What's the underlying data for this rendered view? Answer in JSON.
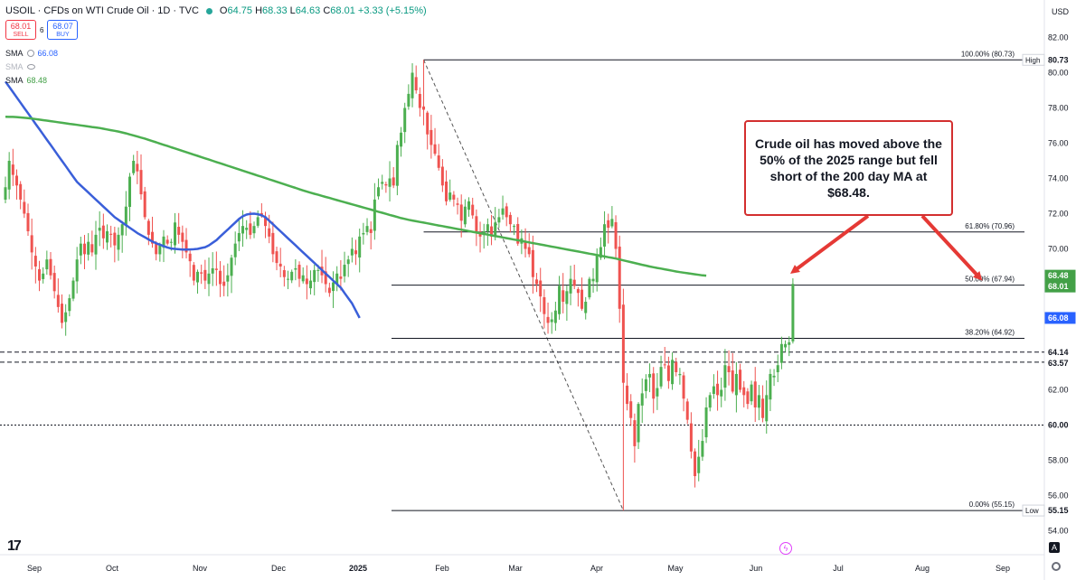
{
  "header": {
    "title": "USOIL · CFDs on WTI Crude Oil · 1D · TVC",
    "ohlc": {
      "o_label": "O",
      "o": "64.75",
      "h_label": "H",
      "h": "68.33",
      "l_label": "L",
      "l": "64.63",
      "c_label": "C",
      "c": "68.01",
      "change": "+3.33 (+5.15%)"
    },
    "sell_price": "68.01",
    "sell_label": "SELL",
    "spread": "6",
    "buy_price": "68.07",
    "buy_label": "BUY"
  },
  "indicators": [
    {
      "name": "SMA",
      "value": "66.08",
      "color": "#2962ff"
    },
    {
      "name": "SMA",
      "value": "",
      "color": "#b2b5be"
    },
    {
      "name": "SMA",
      "value": "68.48",
      "color": "#43a047"
    }
  ],
  "axis_currency": "USD",
  "annotation": {
    "text": "Crude oil has moved above the 50% of the 2025 range but fell short of the 200 day MA at $68.48."
  },
  "colors": {
    "up": "#4caf50",
    "down": "#ef5350",
    "sma_blue": "#3a5fd9",
    "sma_green": "#4caf50",
    "callout": "#d32f2f",
    "arrow": "#e53935"
  },
  "chart_data": {
    "type": "candlestick",
    "symbol": "USOIL",
    "timeframe": "1D",
    "y_range": [
      53,
      83
    ],
    "y_ticks": [
      "82.00",
      "80.00",
      "78.00",
      "76.00",
      "74.00",
      "72.00",
      "70.00",
      "68.00",
      "66.00",
      "64.00",
      "62.00",
      "60.00",
      "58.00",
      "56.00",
      "54.00"
    ],
    "x_ticks": [
      "Sep",
      "Oct",
      "Nov",
      "Dec",
      "2025",
      "Feb",
      "Mar",
      "Apr",
      "May",
      "Jun",
      "Jul",
      "Aug",
      "Sep"
    ],
    "fib_levels": [
      {
        "label": "100.00% (80.73)",
        "value": 80.73
      },
      {
        "label": "61.80% (70.96)",
        "value": 70.96
      },
      {
        "label": "50.00% (67.94)",
        "value": 67.94
      },
      {
        "label": "38.20% (64.92)",
        "value": 64.92
      },
      {
        "label": "0.00% (55.15)",
        "value": 55.15
      }
    ],
    "price_labels": [
      {
        "text": "80.73",
        "value": 80.73,
        "tag": "High",
        "bg": "#ffffff",
        "fg": "#131722"
      },
      {
        "text": "68.48",
        "value": 68.48,
        "bg": "#43a047",
        "fg": "#ffffff"
      },
      {
        "text": "68.01",
        "value": 68.01,
        "bg": "#43a047",
        "fg": "#ffffff"
      },
      {
        "text": "66.08",
        "value": 66.08,
        "bg": "#2962ff",
        "fg": "#ffffff"
      },
      {
        "text": "64.14",
        "value": 64.14,
        "bg": "#ffffff",
        "fg": "#131722"
      },
      {
        "text": "63.57",
        "value": 63.57,
        "bg": "#ffffff",
        "fg": "#131722"
      },
      {
        "text": "60.00",
        "value": 60.0,
        "bg": "#ffffff",
        "fg": "#131722"
      },
      {
        "text": "55.15",
        "value": 55.15,
        "tag": "Low",
        "bg": "#ffffff",
        "fg": "#131722"
      }
    ],
    "hlines": [
      {
        "value": 64.14,
        "style": "dashed"
      },
      {
        "value": 63.57,
        "style": "dashed"
      },
      {
        "value": 60.0,
        "style": "dotted"
      }
    ],
    "swing": {
      "high": 80.73,
      "low": 55.15
    },
    "close": [
      73.5,
      75.0,
      74.2,
      73.6,
      72.8,
      72.0,
      71.0,
      69.8,
      69.0,
      68.2,
      68.6,
      69.4,
      68.5,
      67.6,
      66.7,
      65.8,
      66.4,
      67.2,
      68.2,
      69.4,
      70.3,
      69.7,
      70.4,
      69.8,
      70.8,
      71.2,
      70.6,
      71.0,
      70.8,
      70.2,
      70.8,
      71.4,
      72.4,
      74.1,
      75.0,
      74.4,
      73.1,
      71.8,
      70.8,
      70.3,
      69.7,
      70.2,
      70.7,
      70.3,
      70.4,
      71.5,
      70.8,
      70.4,
      69.8,
      69.3,
      68.2,
      68.7,
      68.6,
      68.2,
      68.6,
      68.9,
      68.8,
      68.0,
      67.9,
      68.5,
      69.5,
      70.3,
      70.9,
      71.3,
      71.2,
      70.8,
      71.3,
      71.8,
      71.9,
      71.3,
      70.7,
      69.7,
      69.2,
      69.0,
      68.4,
      68.3,
      68.7,
      68.9,
      68.3,
      68.5,
      68.0,
      68.2,
      68.8,
      68.8,
      68.5,
      68.0,
      67.5,
      68.1,
      68.6,
      68.3,
      69.1,
      69.4,
      70.0,
      69.7,
      70.7,
      70.9,
      71.3,
      70.9,
      72.8,
      73.5,
      73.8,
      73.6,
      74.0,
      73.6,
      75.9,
      76.6,
      78.0,
      78.8,
      80.0,
      79.0,
      78.0,
      77.9,
      76.5,
      75.9,
      75.4,
      74.6,
      73.6,
      72.7,
      73.2,
      72.8,
      72.5,
      71.6,
      72.4,
      72.7,
      71.9,
      71.0,
      70.7,
      71.0,
      71.4,
      70.7,
      71.5,
      71.8,
      72.3,
      71.8,
      71.4,
      71.3,
      70.3,
      70.6,
      70.0,
      69.7,
      68.4,
      68.0,
      67.3,
      66.3,
      65.8,
      66.0,
      66.5,
      67.9,
      67.0,
      67.6,
      68.3,
      67.9,
      67.5,
      66.6,
      67.0,
      68.3,
      68.3,
      69.7,
      70.1,
      71.4,
      71.2,
      71.7,
      70.0,
      66.6,
      62.4,
      61.2,
      60.4,
      58.8,
      61.2,
      61.8,
      62.6,
      62.9,
      61.5,
      62.1,
      63.3,
      63.4,
      62.5,
      63.7,
      63.0,
      62.9,
      61.5,
      60.3,
      58.5,
      57.1,
      58.2,
      59.1,
      61.0,
      61.7,
      62.2,
      61.7,
      62.0,
      63.4,
      63.0,
      61.9,
      62.9,
      62.0,
      61.7,
      61.2,
      62.3,
      61.0,
      61.7,
      60.4,
      61.7,
      62.9,
      62.8,
      63.4,
      64.6,
      64.6,
      64.7,
      68.01
    ],
    "sma_200": [
      77.5,
      77.49,
      77.49,
      77.48,
      77.46,
      77.44,
      77.42,
      77.4,
      77.37,
      77.34,
      77.31,
      77.28,
      77.25,
      77.22,
      77.19,
      77.16,
      77.13,
      77.1,
      77.07,
      77.04,
      77.01,
      76.98,
      76.95,
      76.92,
      76.89,
      76.86,
      76.82,
      76.78,
      76.74,
      76.7,
      76.66,
      76.61,
      76.56,
      76.5,
      76.44,
      76.38,
      76.32,
      76.26,
      76.19,
      76.12,
      76.05,
      75.98,
      75.91,
      75.84,
      75.77,
      75.7,
      75.63,
      75.56,
      75.49,
      75.42,
      75.35,
      75.28,
      75.21,
      75.14,
      75.07,
      75.0,
      74.93,
      74.86,
      74.79,
      74.72,
      74.65,
      74.58,
      74.51,
      74.44,
      74.37,
      74.3,
      74.23,
      74.16,
      74.09,
      74.02,
      73.95,
      73.88,
      73.81,
      73.74,
      73.67,
      73.6,
      73.53,
      73.46,
      73.39,
      73.32,
      73.25,
      73.19,
      73.13,
      73.07,
      73.01,
      72.95,
      72.89,
      72.83,
      72.77,
      72.71,
      72.65,
      72.59,
      72.53,
      72.47,
      72.41,
      72.35,
      72.29,
      72.23,
      72.17,
      72.11,
      72.05,
      71.99,
      71.93,
      71.87,
      71.81,
      71.75,
      71.7,
      71.65,
      71.61,
      71.57,
      71.53,
      71.49,
      71.45,
      71.41,
      71.37,
      71.33,
      71.29,
      71.25,
      71.21,
      71.17,
      71.13,
      71.09,
      71.05,
      71.01,
      70.97,
      70.93,
      70.89,
      70.85,
      70.81,
      70.77,
      70.73,
      70.69,
      70.65,
      70.61,
      70.57,
      70.53,
      70.49,
      70.45,
      70.41,
      70.37,
      70.33,
      70.29,
      70.25,
      70.21,
      70.17,
      70.13,
      70.09,
      70.05,
      70.01,
      69.97,
      69.93,
      69.89,
      69.85,
      69.81,
      69.77,
      69.73,
      69.69,
      69.65,
      69.61,
      69.57,
      69.53,
      69.49,
      69.45,
      69.4,
      69.35,
      69.3,
      69.25,
      69.2,
      69.15,
      69.1,
      69.05,
      69.0,
      68.96,
      68.92,
      68.88,
      68.84,
      68.8,
      68.76,
      68.72,
      68.68,
      68.65,
      68.62,
      68.59,
      68.56,
      68.53,
      68.5,
      68.48
    ],
    "sma_50": [
      79.5,
      79.2,
      78.9,
      78.6,
      78.3,
      78.0,
      77.7,
      77.4,
      77.1,
      76.8,
      76.5,
      76.2,
      75.9,
      75.6,
      75.3,
      75.0,
      74.7,
      74.4,
      74.1,
      73.8,
      73.6,
      73.4,
      73.2,
      73.0,
      72.8,
      72.6,
      72.4,
      72.2,
      72.0,
      71.8,
      71.65,
      71.5,
      71.35,
      71.2,
      71.05,
      70.9,
      70.78,
      70.66,
      70.54,
      70.42,
      70.32,
      70.24,
      70.16,
      70.08,
      70.02,
      70.0,
      69.98,
      69.96,
      69.96,
      69.97,
      69.98,
      70.0,
      70.05,
      70.1,
      70.2,
      70.35,
      70.5,
      70.7,
      70.9,
      71.1,
      71.3,
      71.5,
      71.7,
      71.85,
      71.95,
      71.99,
      72.0,
      71.97,
      71.9,
      71.8,
      71.6,
      71.4,
      71.2,
      71.0,
      70.8,
      70.6,
      70.4,
      70.2,
      70.0,
      69.8,
      69.6,
      69.4,
      69.2,
      69.0,
      68.8,
      68.6,
      68.4,
      68.2,
      68.0,
      67.8,
      67.5,
      67.2,
      66.9,
      66.5,
      66.08
    ]
  }
}
